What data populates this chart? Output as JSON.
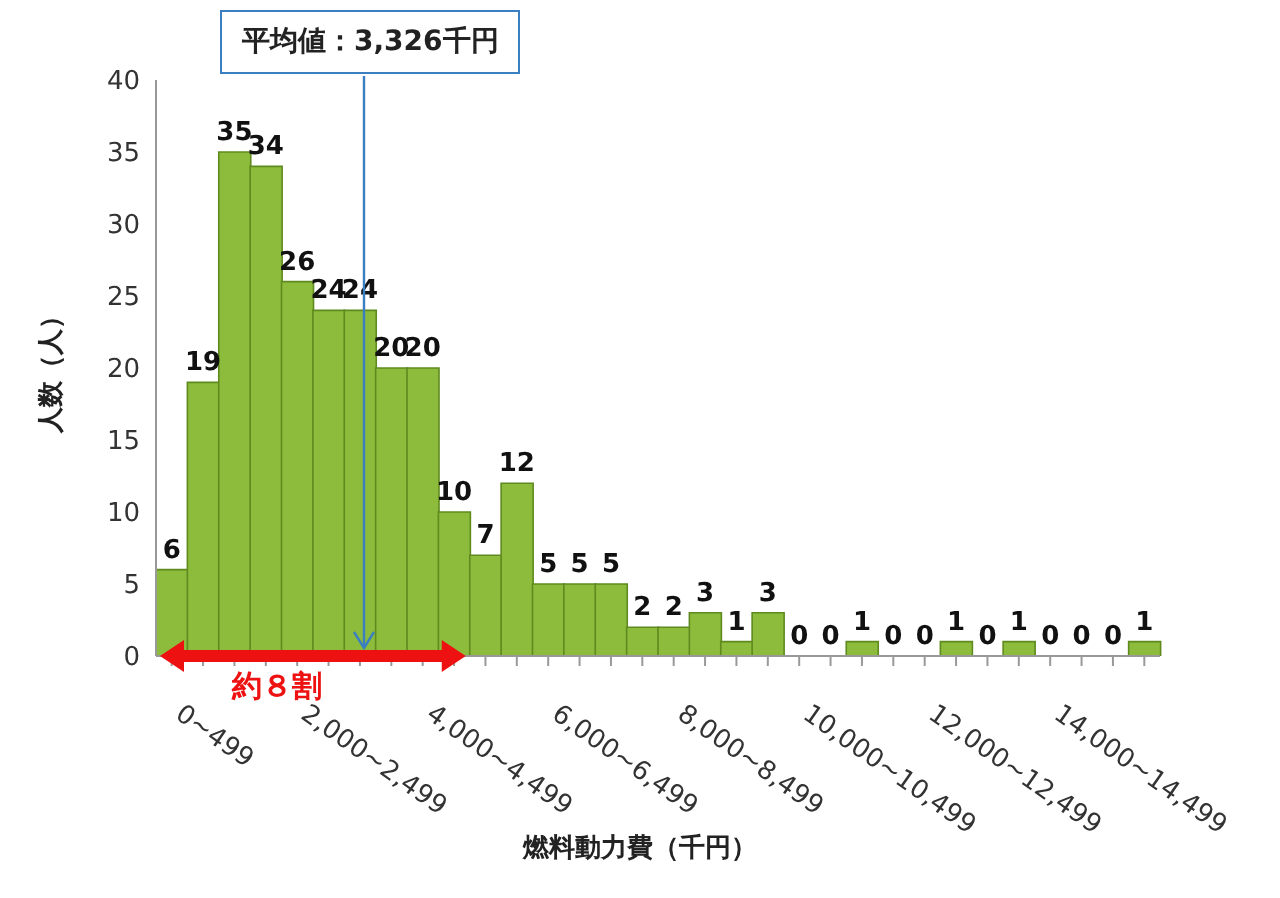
{
  "chart_data": {
    "type": "bar",
    "xlabel": "燃料動力費（千円）",
    "ylabel": "人数（人）",
    "categories": [
      "0~499",
      null,
      null,
      null,
      "2,000~2,499",
      null,
      null,
      null,
      "4,000~4,499",
      null,
      null,
      null,
      "6,000~6,499",
      null,
      null,
      null,
      "8,000~8,499",
      null,
      null,
      null,
      "10,000~10,499",
      null,
      null,
      null,
      "12,000~12,499",
      null,
      null,
      null,
      "14,000~14,499",
      null,
      null,
      null
    ],
    "values": [
      6,
      19,
      35,
      34,
      26,
      24,
      24,
      20,
      20,
      10,
      7,
      12,
      5,
      5,
      5,
      2,
      2,
      3,
      1,
      3,
      0,
      0,
      1,
      0,
      0,
      1,
      0,
      1,
      0,
      0,
      0,
      1
    ],
    "color": "#8dbb3c",
    "ylim": [
      0,
      40
    ],
    "yticks": [
      0,
      5,
      10,
      15,
      20,
      25,
      30,
      35,
      40
    ],
    "data_labels": true,
    "grid": false,
    "legend": false,
    "annotations": [
      "平均値：3,326千円",
      "約８割"
    ]
  }
}
